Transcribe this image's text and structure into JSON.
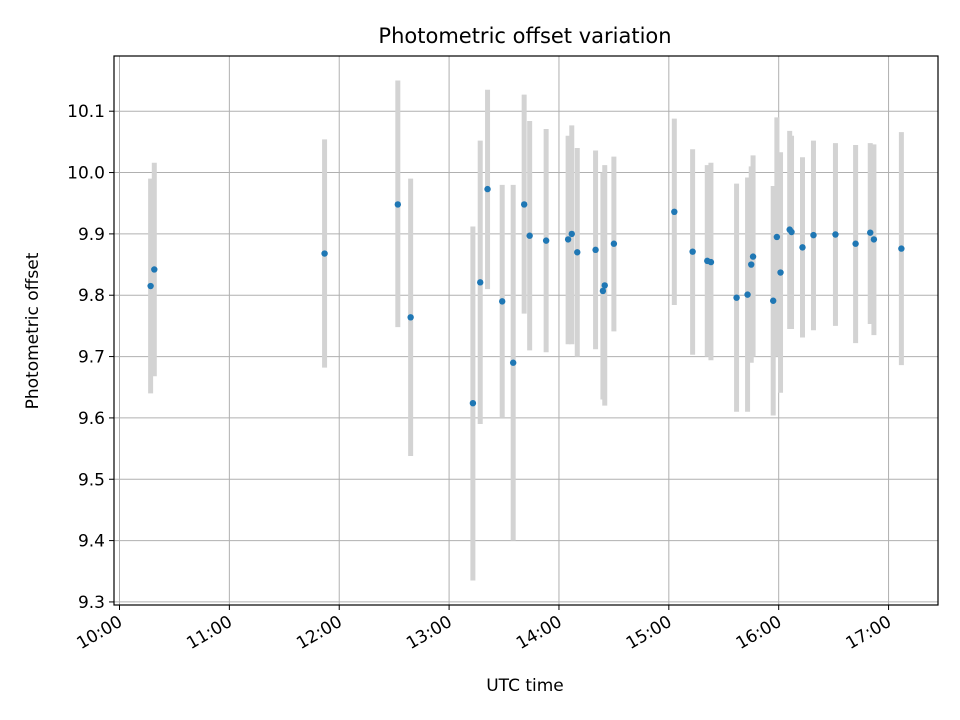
{
  "chart_data": {
    "type": "scatter",
    "title": "Photometric offset variation",
    "xlabel": "UTC time",
    "ylabel": "Photometric offset",
    "grid": true,
    "marker_color": "#1f77b4",
    "errorbar_color": "#d3d3d3",
    "x_tick_labels": [
      "10:00",
      "11:00",
      "12:00",
      "13:00",
      "14:00",
      "15:00",
      "16:00",
      "17:00"
    ],
    "y_tick_labels": [
      "9.3",
      "9.4",
      "9.5",
      "9.6",
      "9.7",
      "9.8",
      "9.9",
      "10.0",
      "10.1"
    ],
    "xlim": [
      "09:57",
      "17:27"
    ],
    "ylim": [
      9.295,
      10.19
    ],
    "series": [
      {
        "points": [
          {
            "x": "10:17",
            "y": 9.815,
            "ylo": 9.64,
            "yhi": 9.99
          },
          {
            "x": "10:19",
            "y": 9.842,
            "ylo": 9.668,
            "yhi": 10.016
          },
          {
            "x": "11:52",
            "y": 9.868,
            "ylo": 9.682,
            "yhi": 10.054
          },
          {
            "x": "12:32",
            "y": 9.948,
            "ylo": 9.748,
            "yhi": 10.15
          },
          {
            "x": "12:39",
            "y": 9.764,
            "ylo": 9.538,
            "yhi": 9.99
          },
          {
            "x": "13:13",
            "y": 9.624,
            "ylo": 9.335,
            "yhi": 9.912
          },
          {
            "x": "13:17",
            "y": 9.821,
            "ylo": 9.59,
            "yhi": 10.052
          },
          {
            "x": "13:21",
            "y": 9.973,
            "ylo": 9.81,
            "yhi": 10.135
          },
          {
            "x": "13:29",
            "y": 9.79,
            "ylo": 9.6,
            "yhi": 9.98
          },
          {
            "x": "13:35",
            "y": 9.69,
            "ylo": 9.4,
            "yhi": 9.98
          },
          {
            "x": "13:41",
            "y": 9.948,
            "ylo": 9.77,
            "yhi": 10.127
          },
          {
            "x": "13:44",
            "y": 9.897,
            "ylo": 9.71,
            "yhi": 10.084
          },
          {
            "x": "13:53",
            "y": 9.889,
            "ylo": 9.707,
            "yhi": 10.071
          },
          {
            "x": "14:05",
            "y": 9.891,
            "ylo": 9.72,
            "yhi": 10.06
          },
          {
            "x": "14:07",
            "y": 9.9,
            "ylo": 9.72,
            "yhi": 10.077
          },
          {
            "x": "14:10",
            "y": 9.87,
            "ylo": 9.7,
            "yhi": 10.04
          },
          {
            "x": "14:20",
            "y": 9.874,
            "ylo": 9.712,
            "yhi": 10.036
          },
          {
            "x": "14:24",
            "y": 9.807,
            "ylo": 9.63,
            "yhi": 10.0
          },
          {
            "x": "14:25",
            "y": 9.816,
            "ylo": 9.62,
            "yhi": 10.012
          },
          {
            "x": "14:30",
            "y": 9.884,
            "ylo": 9.741,
            "yhi": 10.026
          },
          {
            "x": "15:03",
            "y": 9.936,
            "ylo": 9.784,
            "yhi": 10.088
          },
          {
            "x": "15:13",
            "y": 9.871,
            "ylo": 9.703,
            "yhi": 10.038
          },
          {
            "x": "15:21",
            "y": 9.856,
            "ylo": 9.7,
            "yhi": 10.012
          },
          {
            "x": "15:23",
            "y": 9.854,
            "ylo": 9.694,
            "yhi": 10.016
          },
          {
            "x": "15:37",
            "y": 9.796,
            "ylo": 9.61,
            "yhi": 9.982
          },
          {
            "x": "15:43",
            "y": 9.801,
            "ylo": 9.61,
            "yhi": 9.992
          },
          {
            "x": "15:45",
            "y": 9.85,
            "ylo": 9.69,
            "yhi": 10.01
          },
          {
            "x": "15:46",
            "y": 9.863,
            "ylo": 9.7,
            "yhi": 10.028
          },
          {
            "x": "15:57",
            "y": 9.791,
            "ylo": 9.604,
            "yhi": 9.978
          },
          {
            "x": "15:59",
            "y": 9.895,
            "ylo": 9.7,
            "yhi": 10.09
          },
          {
            "x": "16:01",
            "y": 9.837,
            "ylo": 9.641,
            "yhi": 10.033
          },
          {
            "x": "16:06",
            "y": 9.907,
            "ylo": 9.745,
            "yhi": 10.068
          },
          {
            "x": "16:07",
            "y": 9.903,
            "ylo": 9.745,
            "yhi": 10.06
          },
          {
            "x": "16:13",
            "y": 9.878,
            "ylo": 9.731,
            "yhi": 10.025
          },
          {
            "x": "16:19",
            "y": 9.898,
            "ylo": 9.743,
            "yhi": 10.052
          },
          {
            "x": "16:31",
            "y": 9.899,
            "ylo": 9.75,
            "yhi": 10.048
          },
          {
            "x": "16:42",
            "y": 9.884,
            "ylo": 9.722,
            "yhi": 10.045
          },
          {
            "x": "16:50",
            "y": 9.902,
            "ylo": 9.753,
            "yhi": 10.048
          },
          {
            "x": "16:52",
            "y": 9.891,
            "ylo": 9.735,
            "yhi": 10.046
          },
          {
            "x": "17:07",
            "y": 9.876,
            "ylo": 9.686,
            "yhi": 10.066
          }
        ]
      }
    ]
  }
}
